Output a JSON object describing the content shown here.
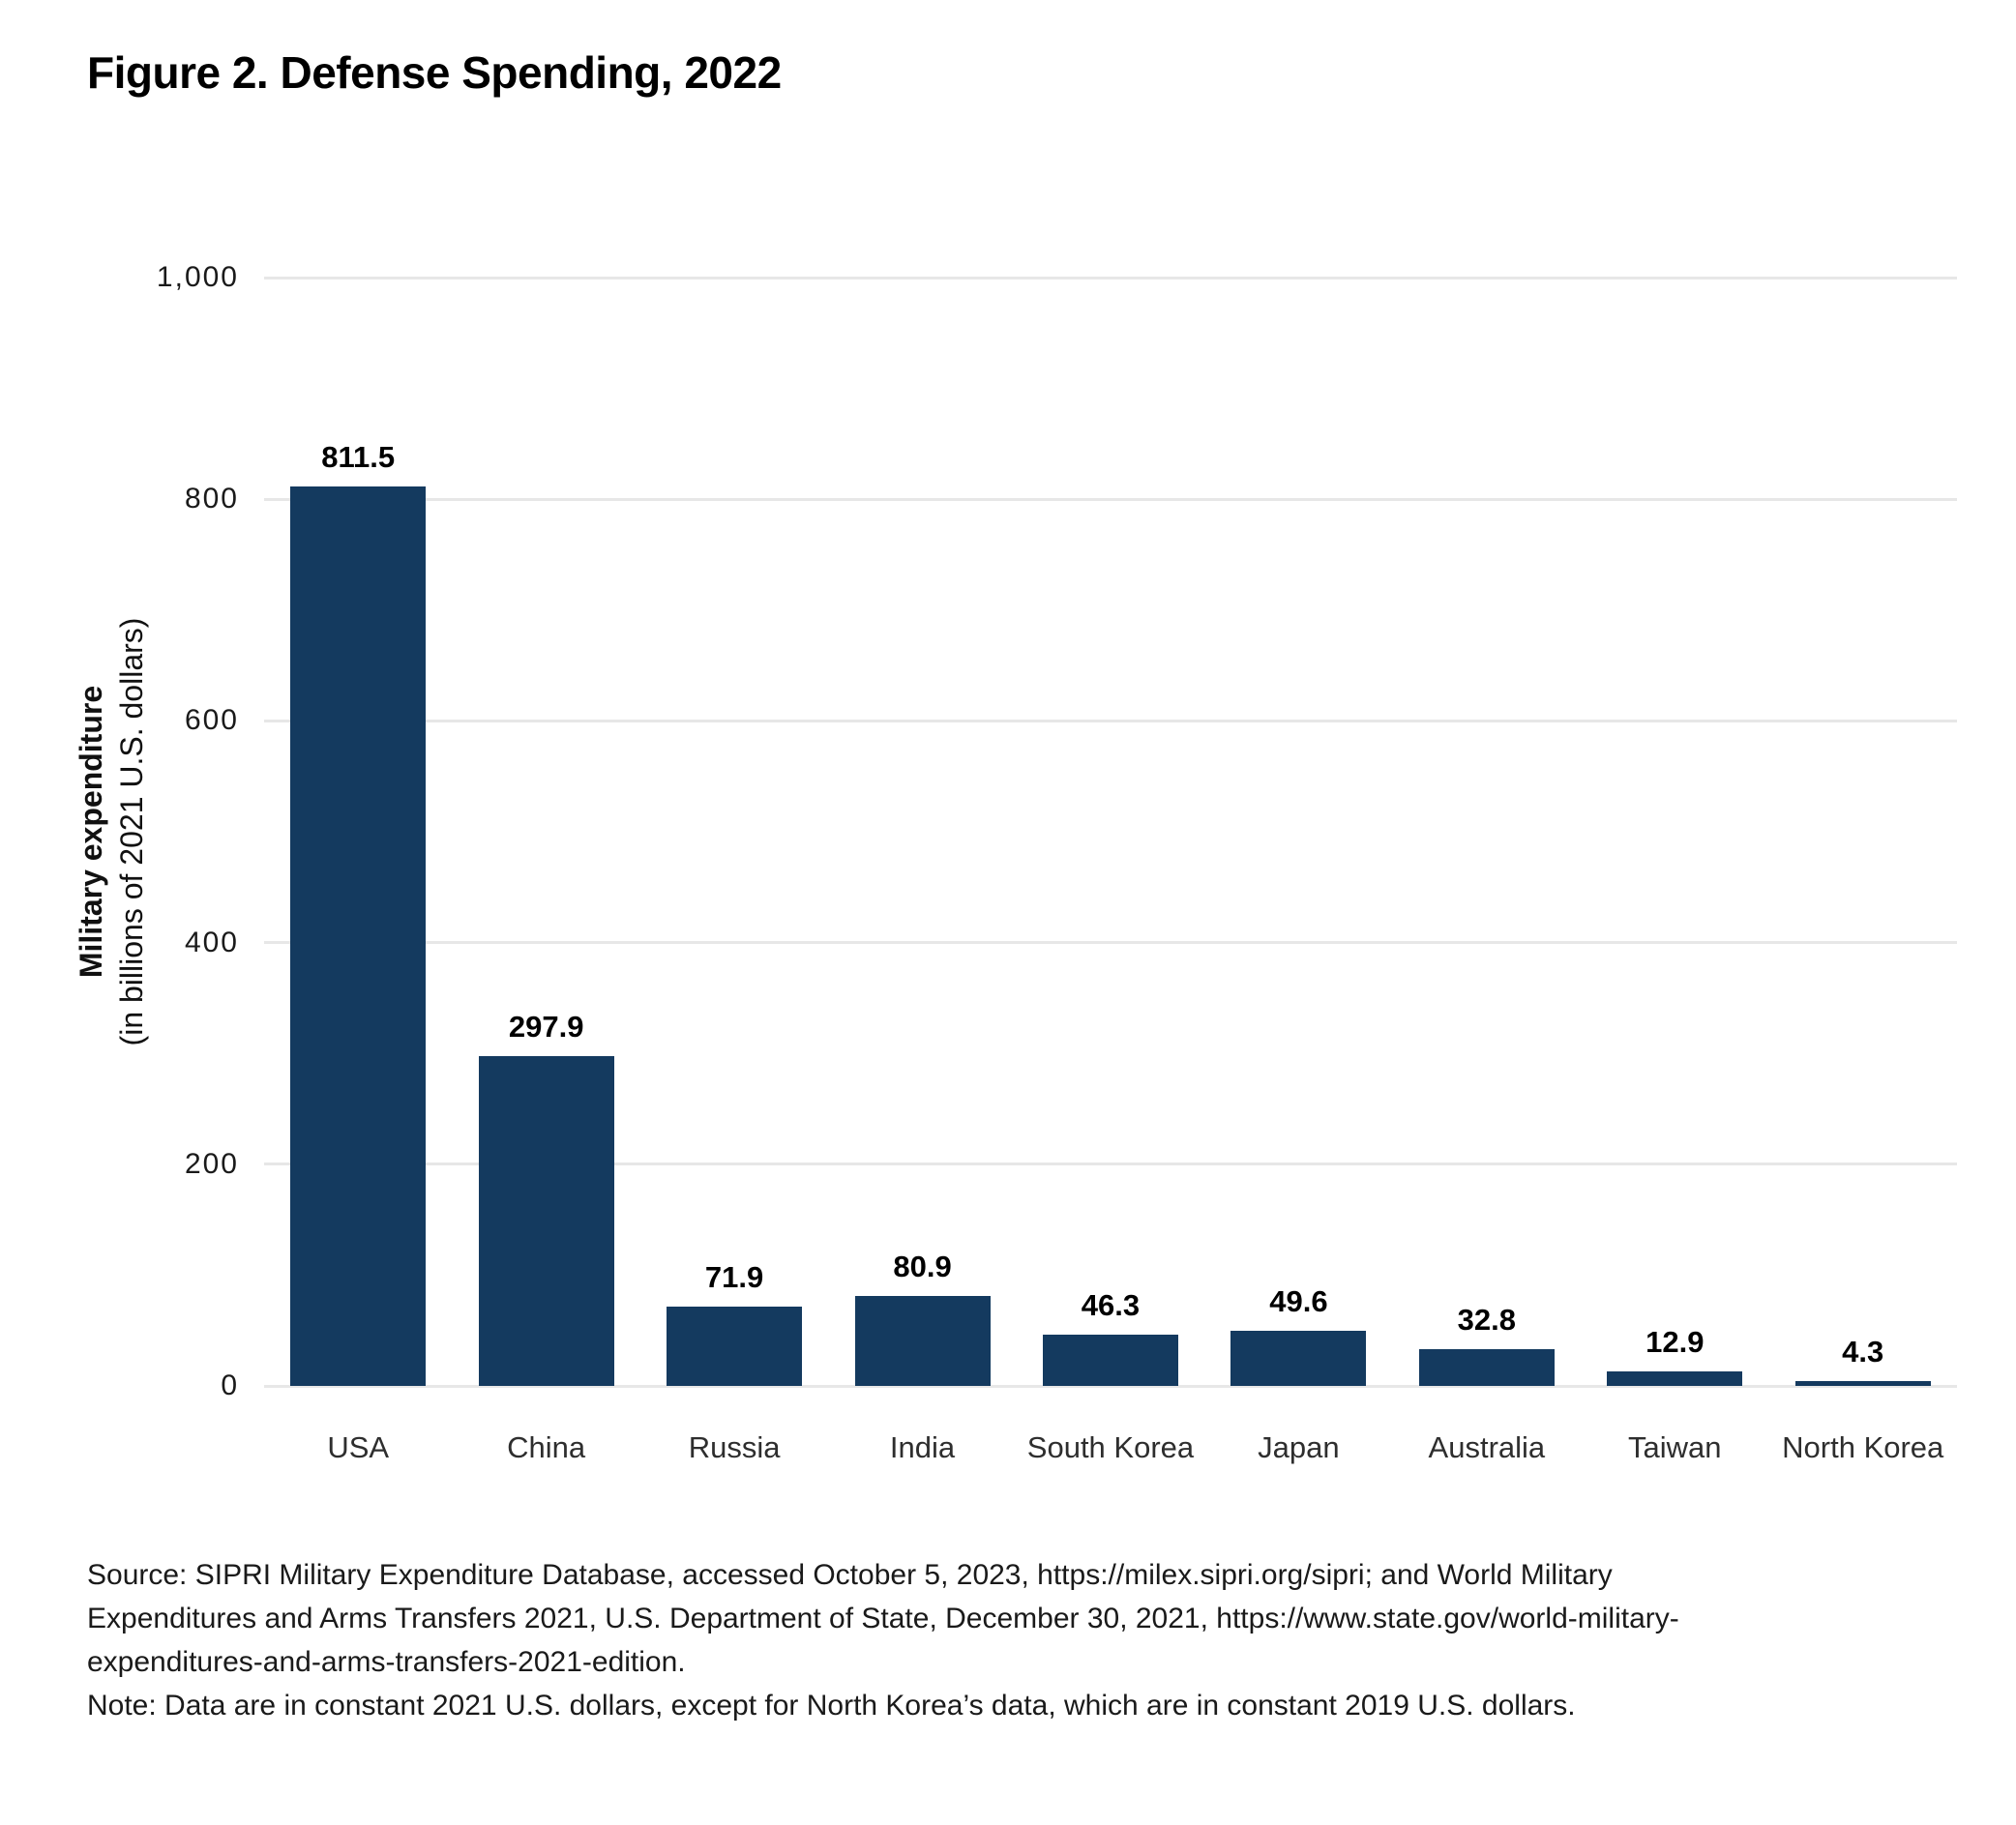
{
  "figure": {
    "title": "Figure 2. Defense Spending, 2022"
  },
  "chart_data": {
    "type": "bar",
    "title": "Figure 2. Defense Spending, 2022",
    "categories": [
      "USA",
      "China",
      "Russia",
      "India",
      "South Korea",
      "Japan",
      "Australia",
      "Taiwan",
      "North Korea"
    ],
    "values": [
      811.5,
      297.9,
      71.9,
      80.9,
      46.3,
      49.6,
      32.8,
      12.9,
      4.3
    ],
    "bar_labels": [
      "811.5",
      "297.9",
      "71.9",
      "80.9",
      "46.3",
      "49.6",
      "32.8",
      "12.9",
      "4.3"
    ],
    "ylabel": "Military expenditure",
    "ylabel_sub": "(in billions of 2021 U.S. dollars)",
    "xlabel": "",
    "ylim": [
      0,
      1000
    ],
    "yticks": [
      0,
      200,
      400,
      600,
      800,
      1000
    ],
    "ytick_labels": [
      "0",
      "200",
      "400",
      "600",
      "800",
      "1,000"
    ],
    "grid": true,
    "legend": false,
    "bar_color": "#143A5F",
    "gridline_color": "#E7E7E7"
  },
  "footer": {
    "source_lines": [
      "Source: SIPRI Military Expenditure Database, accessed October 5, 2023, https://milex.sipri.org/sipri; and World Military",
      "Expenditures and Arms Transfers 2021, U.S. Department of State, December 30, 2021, https://www.state.gov/world-military-",
      "expenditures-and-arms-transfers-2021-edition."
    ],
    "note": "Note: Data are in constant 2021 U.S. dollars, except for North Korea’s data, which are in constant 2019 U.S. dollars."
  }
}
